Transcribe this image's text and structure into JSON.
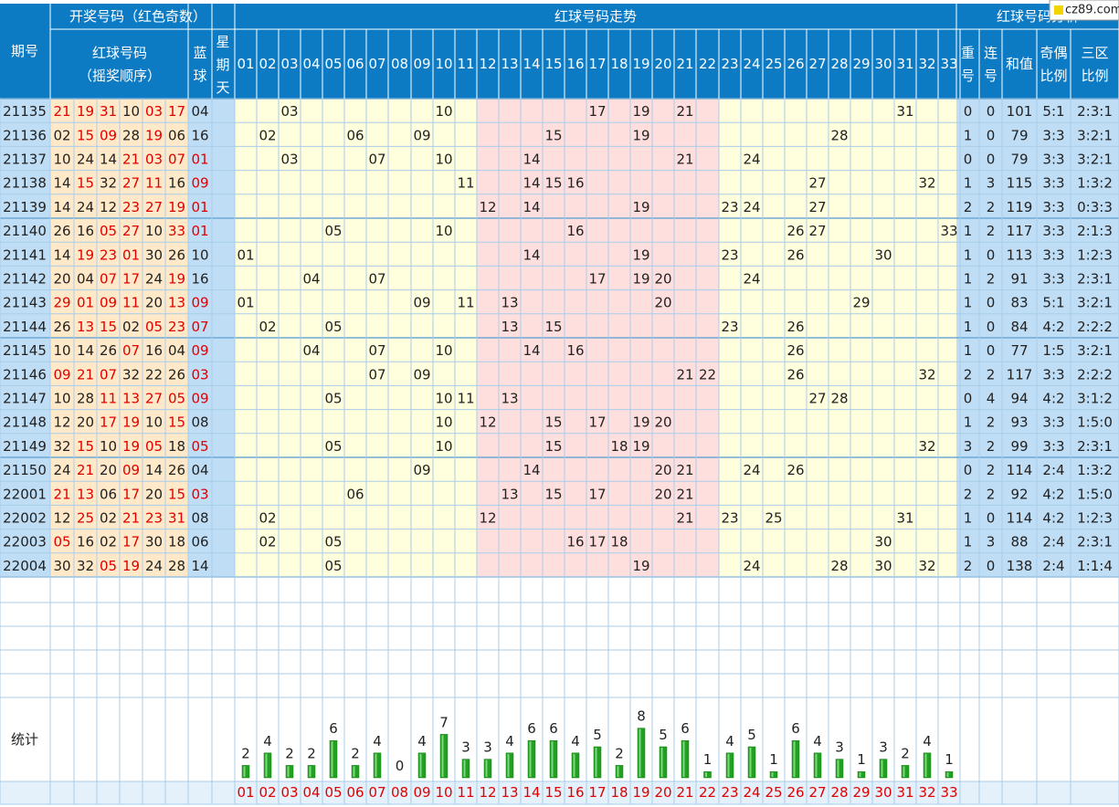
{
  "header": {
    "period_label": "期号",
    "draw_label": "开奖号码（红色奇数）",
    "red_label_line1": "红球号码",
    "red_label_line2": "（摇奖顺序）",
    "blue_label_line1": "蓝",
    "blue_label_line2": "球",
    "weekday_label_line1": "星",
    "weekday_label_line2": "期",
    "weekday_label_line3": "天",
    "trend_label": "红球号码走势",
    "analysis_label": "红球号码分析",
    "repeat_label_line1": "重",
    "repeat_label_line2": "号",
    "consec_label_line1": "连",
    "consec_label_line2": "号",
    "sum_label": "和值",
    "oddeven_label_line1": "奇偶",
    "oddeven_label_line2": "比例",
    "zone_label_line1": "三区",
    "zone_label_line2": "比例",
    "numbers": [
      "01",
      "02",
      "03",
      "04",
      "05",
      "06",
      "07",
      "08",
      "09",
      "10",
      "11",
      "12",
      "13",
      "14",
      "15",
      "16",
      "17",
      "18",
      "19",
      "20",
      "21",
      "22",
      "23",
      "24",
      "25",
      "26",
      "27",
      "28",
      "29",
      "30",
      "31",
      "32",
      "33"
    ]
  },
  "watermark": "cz89.com",
  "stats_label": "统计",
  "colors": {
    "header_bg": "#0C7BC4",
    "header_text": "#FFFFFF",
    "draw_bg": "#FFE9C8",
    "blue_bg": "#BFDDF5",
    "zone_light": "#FFFFDD",
    "zone_pink": "#FFDEDE",
    "odd_red": "#E00000",
    "bar_green": "#22A022"
  },
  "draws": [
    {
      "period": "21135",
      "reds": [
        "21",
        "19",
        "31",
        "10",
        "03",
        "17"
      ],
      "blue": "04",
      "repeat": "0",
      "consec": "0",
      "sum": "101",
      "oddeven": "5:1",
      "zone": "2:3:1"
    },
    {
      "period": "21136",
      "reds": [
        "02",
        "15",
        "09",
        "28",
        "19",
        "06"
      ],
      "blue": "16",
      "repeat": "1",
      "consec": "0",
      "sum": "79",
      "oddeven": "3:3",
      "zone": "3:2:1"
    },
    {
      "period": "21137",
      "reds": [
        "10",
        "24",
        "14",
        "21",
        "03",
        "07"
      ],
      "blue": "01",
      "repeat": "0",
      "consec": "0",
      "sum": "79",
      "oddeven": "3:3",
      "zone": "3:2:1"
    },
    {
      "period": "21138",
      "reds": [
        "14",
        "15",
        "32",
        "27",
        "11",
        "16"
      ],
      "blue": "09",
      "repeat": "1",
      "consec": "3",
      "sum": "115",
      "oddeven": "3:3",
      "zone": "1:3:2"
    },
    {
      "period": "21139",
      "reds": [
        "14",
        "24",
        "12",
        "23",
        "27",
        "19"
      ],
      "blue": "01",
      "repeat": "2",
      "consec": "2",
      "sum": "119",
      "oddeven": "3:3",
      "zone": "0:3:3"
    },
    {
      "period": "21140",
      "reds": [
        "26",
        "16",
        "05",
        "27",
        "10",
        "33"
      ],
      "blue": "01",
      "repeat": "1",
      "consec": "2",
      "sum": "117",
      "oddeven": "3:3",
      "zone": "2:1:3"
    },
    {
      "period": "21141",
      "reds": [
        "14",
        "19",
        "23",
        "01",
        "30",
        "26"
      ],
      "blue": "10",
      "repeat": "1",
      "consec": "0",
      "sum": "113",
      "oddeven": "3:3",
      "zone": "1:2:3"
    },
    {
      "period": "21142",
      "reds": [
        "20",
        "04",
        "07",
        "17",
        "24",
        "19"
      ],
      "blue": "16",
      "repeat": "1",
      "consec": "2",
      "sum": "91",
      "oddeven": "3:3",
      "zone": "2:3:1"
    },
    {
      "period": "21143",
      "reds": [
        "29",
        "01",
        "09",
        "11",
        "20",
        "13"
      ],
      "blue": "09",
      "repeat": "1",
      "consec": "0",
      "sum": "83",
      "oddeven": "5:1",
      "zone": "3:2:1"
    },
    {
      "period": "21144",
      "reds": [
        "26",
        "13",
        "15",
        "02",
        "05",
        "23"
      ],
      "blue": "07",
      "repeat": "1",
      "consec": "0",
      "sum": "84",
      "oddeven": "4:2",
      "zone": "2:2:2"
    },
    {
      "period": "21145",
      "reds": [
        "10",
        "14",
        "26",
        "07",
        "16",
        "04"
      ],
      "blue": "09",
      "repeat": "1",
      "consec": "0",
      "sum": "77",
      "oddeven": "1:5",
      "zone": "3:2:1"
    },
    {
      "period": "21146",
      "reds": [
        "09",
        "21",
        "07",
        "32",
        "22",
        "26"
      ],
      "blue": "03",
      "repeat": "2",
      "consec": "2",
      "sum": "117",
      "oddeven": "3:3",
      "zone": "2:2:2"
    },
    {
      "period": "21147",
      "reds": [
        "10",
        "28",
        "11",
        "13",
        "27",
        "05"
      ],
      "blue": "09",
      "repeat": "0",
      "consec": "4",
      "sum": "94",
      "oddeven": "4:2",
      "zone": "3:1:2"
    },
    {
      "period": "21148",
      "reds": [
        "12",
        "20",
        "17",
        "19",
        "10",
        "15"
      ],
      "blue": "08",
      "repeat": "1",
      "consec": "2",
      "sum": "93",
      "oddeven": "3:3",
      "zone": "1:5:0"
    },
    {
      "period": "21149",
      "reds": [
        "32",
        "15",
        "10",
        "19",
        "05",
        "18"
      ],
      "blue": "05",
      "repeat": "3",
      "consec": "2",
      "sum": "99",
      "oddeven": "3:3",
      "zone": "2:3:1"
    },
    {
      "period": "21150",
      "reds": [
        "24",
        "21",
        "20",
        "09",
        "14",
        "26"
      ],
      "blue": "04",
      "repeat": "0",
      "consec": "2",
      "sum": "114",
      "oddeven": "2:4",
      "zone": "1:3:2"
    },
    {
      "period": "22001",
      "reds": [
        "21",
        "13",
        "06",
        "17",
        "20",
        "15"
      ],
      "blue": "03",
      "repeat": "2",
      "consec": "2",
      "sum": "92",
      "oddeven": "4:2",
      "zone": "1:5:0"
    },
    {
      "period": "22002",
      "reds": [
        "12",
        "25",
        "02",
        "21",
        "23",
        "31"
      ],
      "blue": "08",
      "repeat": "1",
      "consec": "0",
      "sum": "114",
      "oddeven": "4:2",
      "zone": "1:2:3"
    },
    {
      "period": "22003",
      "reds": [
        "05",
        "16",
        "02",
        "17",
        "30",
        "18"
      ],
      "blue": "06",
      "repeat": "1",
      "consec": "3",
      "sum": "88",
      "oddeven": "2:4",
      "zone": "2:3:1"
    },
    {
      "period": "22004",
      "reds": [
        "30",
        "32",
        "05",
        "19",
        "24",
        "28"
      ],
      "blue": "14",
      "repeat": "2",
      "consec": "0",
      "sum": "138",
      "oddeven": "2:4",
      "zone": "1:1:4"
    }
  ],
  "chart_data": {
    "type": "bar",
    "categories": [
      "01",
      "02",
      "03",
      "04",
      "05",
      "06",
      "07",
      "08",
      "09",
      "10",
      "11",
      "12",
      "13",
      "14",
      "15",
      "16",
      "17",
      "18",
      "19",
      "20",
      "21",
      "22",
      "23",
      "24",
      "25",
      "26",
      "27",
      "28",
      "29",
      "30",
      "31",
      "32",
      "33"
    ],
    "values": [
      2,
      4,
      2,
      2,
      6,
      2,
      4,
      0,
      4,
      7,
      3,
      3,
      4,
      6,
      6,
      4,
      5,
      2,
      8,
      5,
      6,
      1,
      4,
      5,
      1,
      6,
      4,
      3,
      1,
      3,
      2,
      4,
      1
    ],
    "xlabel": "",
    "ylabel": "统计"
  }
}
